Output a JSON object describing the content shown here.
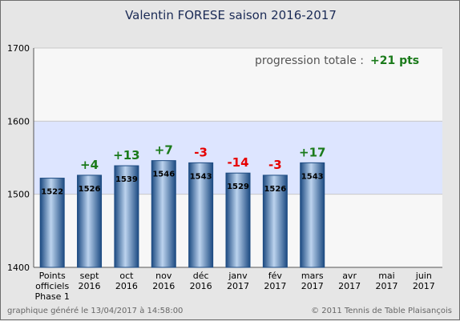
{
  "title": "Valentin FORESE    saison 2016-2017",
  "progression": {
    "label": "progression totale :",
    "value": "+21 pts"
  },
  "footer": {
    "left": "graphique généré le 13/04/2017 à 14:58:00",
    "right": "© 2011 Tennis de Table Plaisançois"
  },
  "colors": {
    "positive": "#1a7a1a",
    "negative": "#e60000",
    "band": "#dde5ff",
    "plot": "#f7f7f7",
    "bar_dark": "#1d4b82",
    "bar_light": "#bcd3ee"
  },
  "chart_data": {
    "type": "bar",
    "ylim": [
      1400,
      1700
    ],
    "yticks": [
      1400,
      1500,
      1600,
      1700
    ],
    "band": [
      1500,
      1600
    ],
    "categories": [
      [
        "Points",
        "officiels",
        "Phase 1"
      ],
      [
        "sept",
        "2016"
      ],
      [
        "oct",
        "2016"
      ],
      [
        "nov",
        "2016"
      ],
      [
        "déc",
        "2016"
      ],
      [
        "janv",
        "2017"
      ],
      [
        "fév",
        "2017"
      ],
      [
        "mars",
        "2017"
      ],
      [
        "avr",
        "2017"
      ],
      [
        "mai",
        "2017"
      ],
      [
        "juin",
        "2017"
      ]
    ],
    "values": [
      1522,
      1526,
      1539,
      1546,
      1543,
      1529,
      1526,
      1543,
      null,
      null,
      null
    ],
    "deltas": [
      "",
      "+4",
      "+13",
      "+7",
      "-3",
      "-14",
      "-3",
      "+17",
      "",
      "",
      ""
    ]
  }
}
